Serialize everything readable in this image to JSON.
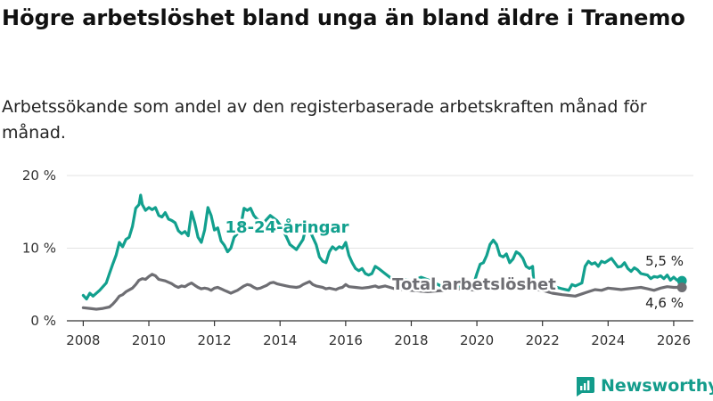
{
  "title": "Högre arbetslöshet bland unga än bland äldre i Tranemo",
  "subtitle": "Arbetssökande som andel av den registerbaserade arbetskraften månad för månad.",
  "logo": {
    "text": "Newsworthy",
    "icon": "bar-chart-logo-icon"
  },
  "colors": {
    "youth": "#12a08e",
    "total": "#6e6e73",
    "grid": "#e3e3e3",
    "axis": "#333333"
  },
  "chart_data": {
    "type": "line",
    "x_ticks": [
      2008,
      2010,
      2012,
      2014,
      2016,
      2018,
      2020,
      2022,
      2024,
      2026
    ],
    "x_tick_labels": [
      "2008",
      "2010",
      "2012",
      "2014",
      "2016",
      "2018",
      "2020",
      "2022",
      "2024",
      "2026"
    ],
    "y_ticks": [
      0,
      10,
      20
    ],
    "y_tick_labels": [
      "0 %",
      "10 %",
      "20 %"
    ],
    "xlim": [
      2007.5,
      2026.6
    ],
    "ylim": [
      0,
      20
    ],
    "series": [
      {
        "name": "18-24-åringar",
        "color": "#12a08e",
        "last_label": "5,5 %",
        "points": [
          [
            2008.0,
            3.5
          ],
          [
            2008.1,
            3.0
          ],
          [
            2008.2,
            3.8
          ],
          [
            2008.3,
            3.4
          ],
          [
            2008.5,
            4.2
          ],
          [
            2008.7,
            5.2
          ],
          [
            2008.8,
            6.5
          ],
          [
            2008.9,
            7.8
          ],
          [
            2009.0,
            9.0
          ],
          [
            2009.1,
            10.8
          ],
          [
            2009.2,
            10.2
          ],
          [
            2009.3,
            11.2
          ],
          [
            2009.4,
            11.5
          ],
          [
            2009.5,
            13.0
          ],
          [
            2009.6,
            15.5
          ],
          [
            2009.7,
            16.0
          ],
          [
            2009.75,
            17.3
          ],
          [
            2009.8,
            16.0
          ],
          [
            2009.9,
            15.2
          ],
          [
            2010.0,
            15.6
          ],
          [
            2010.1,
            15.3
          ],
          [
            2010.2,
            15.6
          ],
          [
            2010.3,
            14.5
          ],
          [
            2010.4,
            14.3
          ],
          [
            2010.5,
            14.9
          ],
          [
            2010.6,
            14.0
          ],
          [
            2010.7,
            13.8
          ],
          [
            2010.8,
            13.5
          ],
          [
            2010.9,
            12.4
          ],
          [
            2011.0,
            12.0
          ],
          [
            2011.1,
            12.3
          ],
          [
            2011.2,
            11.7
          ],
          [
            2011.3,
            15.0
          ],
          [
            2011.4,
            13.5
          ],
          [
            2011.5,
            11.5
          ],
          [
            2011.6,
            10.8
          ],
          [
            2011.7,
            12.5
          ],
          [
            2011.8,
            15.6
          ],
          [
            2011.9,
            14.5
          ],
          [
            2012.0,
            12.5
          ],
          [
            2012.1,
            12.8
          ],
          [
            2012.2,
            11.0
          ],
          [
            2012.3,
            10.4
          ],
          [
            2012.4,
            9.5
          ],
          [
            2012.5,
            10.0
          ],
          [
            2012.6,
            11.5
          ],
          [
            2012.7,
            12.0
          ],
          [
            2012.8,
            13.0
          ],
          [
            2012.9,
            15.5
          ],
          [
            2013.0,
            15.2
          ],
          [
            2013.1,
            15.5
          ],
          [
            2013.2,
            14.5
          ],
          [
            2013.3,
            14.0
          ],
          [
            2013.5,
            13.5
          ],
          [
            2013.7,
            14.5
          ],
          [
            2013.9,
            13.8
          ],
          [
            2014.0,
            13.2
          ],
          [
            2014.2,
            11.5
          ],
          [
            2014.3,
            10.5
          ],
          [
            2014.5,
            9.8
          ],
          [
            2014.7,
            11.2
          ],
          [
            2014.8,
            13.0
          ],
          [
            2014.9,
            12.5
          ],
          [
            2015.0,
            11.5
          ],
          [
            2015.1,
            10.5
          ],
          [
            2015.2,
            8.8
          ],
          [
            2015.3,
            8.2
          ],
          [
            2015.4,
            8.0
          ],
          [
            2015.5,
            9.5
          ],
          [
            2015.6,
            10.2
          ],
          [
            2015.7,
            9.8
          ],
          [
            2015.8,
            10.2
          ],
          [
            2015.9,
            10.0
          ],
          [
            2016.0,
            10.8
          ],
          [
            2016.1,
            9.0
          ],
          [
            2016.2,
            8.0
          ],
          [
            2016.3,
            7.2
          ],
          [
            2016.4,
            6.9
          ],
          [
            2016.5,
            7.2
          ],
          [
            2016.6,
            6.5
          ],
          [
            2016.7,
            6.3
          ],
          [
            2016.8,
            6.5
          ],
          [
            2016.9,
            7.5
          ],
          [
            2017.0,
            7.2
          ],
          [
            2017.2,
            6.5
          ],
          [
            2017.4,
            5.8
          ],
          [
            2017.5,
            5.6
          ],
          [
            2017.7,
            5.8
          ],
          [
            2017.9,
            5.6
          ],
          [
            2018.0,
            5.4
          ],
          [
            2018.3,
            6.0
          ],
          [
            2018.6,
            5.5
          ],
          [
            2018.9,
            4.8
          ],
          [
            2019.2,
            5.0
          ],
          [
            2019.5,
            4.6
          ],
          [
            2019.7,
            4.2
          ],
          [
            2019.9,
            5.0
          ],
          [
            2020.0,
            6.5
          ],
          [
            2020.1,
            7.8
          ],
          [
            2020.2,
            8.0
          ],
          [
            2020.3,
            9.0
          ],
          [
            2020.4,
            10.5
          ],
          [
            2020.5,
            11.1
          ],
          [
            2020.6,
            10.5
          ],
          [
            2020.7,
            9.0
          ],
          [
            2020.8,
            8.8
          ],
          [
            2020.9,
            9.2
          ],
          [
            2021.0,
            8.0
          ],
          [
            2021.1,
            8.5
          ],
          [
            2021.2,
            9.5
          ],
          [
            2021.3,
            9.2
          ],
          [
            2021.4,
            8.6
          ],
          [
            2021.5,
            7.5
          ],
          [
            2021.6,
            7.2
          ],
          [
            2021.7,
            7.5
          ],
          [
            2021.75,
            4.4
          ],
          [
            2022.0,
            4.5
          ],
          [
            2022.3,
            4.8
          ],
          [
            2022.6,
            4.4
          ],
          [
            2022.8,
            4.2
          ],
          [
            2022.9,
            5.0
          ],
          [
            2023.0,
            4.8
          ],
          [
            2023.2,
            5.2
          ],
          [
            2023.3,
            7.5
          ],
          [
            2023.4,
            8.2
          ],
          [
            2023.5,
            7.8
          ],
          [
            2023.6,
            8.0
          ],
          [
            2023.7,
            7.5
          ],
          [
            2023.8,
            8.2
          ],
          [
            2023.9,
            8.0
          ],
          [
            2024.0,
            8.3
          ],
          [
            2024.1,
            8.6
          ],
          [
            2024.2,
            8.0
          ],
          [
            2024.3,
            7.4
          ],
          [
            2024.4,
            7.5
          ],
          [
            2024.5,
            8.0
          ],
          [
            2024.6,
            7.2
          ],
          [
            2024.7,
            6.8
          ],
          [
            2024.8,
            7.3
          ],
          [
            2024.9,
            7.0
          ],
          [
            2025.0,
            6.5
          ],
          [
            2025.2,
            6.3
          ],
          [
            2025.3,
            5.8
          ],
          [
            2025.4,
            6.1
          ],
          [
            2025.5,
            6.0
          ],
          [
            2025.6,
            6.2
          ],
          [
            2025.7,
            5.8
          ],
          [
            2025.8,
            6.3
          ],
          [
            2025.9,
            5.6
          ],
          [
            2026.0,
            6.0
          ],
          [
            2026.1,
            5.6
          ],
          [
            2026.25,
            5.5
          ]
        ]
      },
      {
        "name": "Total arbetslöshet",
        "color": "#6e6e73",
        "last_label": "4,6 %",
        "points": [
          [
            2008.0,
            1.8
          ],
          [
            2008.2,
            1.7
          ],
          [
            2008.4,
            1.6
          ],
          [
            2008.6,
            1.7
          ],
          [
            2008.8,
            1.9
          ],
          [
            2008.9,
            2.3
          ],
          [
            2009.0,
            2.8
          ],
          [
            2009.1,
            3.4
          ],
          [
            2009.2,
            3.6
          ],
          [
            2009.3,
            4.0
          ],
          [
            2009.5,
            4.5
          ],
          [
            2009.6,
            5.0
          ],
          [
            2009.7,
            5.6
          ],
          [
            2009.8,
            5.8
          ],
          [
            2009.9,
            5.7
          ],
          [
            2010.0,
            6.1
          ],
          [
            2010.1,
            6.4
          ],
          [
            2010.2,
            6.2
          ],
          [
            2010.3,
            5.7
          ],
          [
            2010.5,
            5.5
          ],
          [
            2010.6,
            5.3
          ],
          [
            2010.7,
            5.1
          ],
          [
            2010.8,
            4.8
          ],
          [
            2010.9,
            4.6
          ],
          [
            2011.0,
            4.8
          ],
          [
            2011.1,
            4.7
          ],
          [
            2011.2,
            5.0
          ],
          [
            2011.3,
            5.2
          ],
          [
            2011.4,
            4.9
          ],
          [
            2011.5,
            4.6
          ],
          [
            2011.6,
            4.4
          ],
          [
            2011.7,
            4.5
          ],
          [
            2011.8,
            4.4
          ],
          [
            2011.9,
            4.2
          ],
          [
            2012.0,
            4.5
          ],
          [
            2012.1,
            4.6
          ],
          [
            2012.2,
            4.4
          ],
          [
            2012.3,
            4.2
          ],
          [
            2012.4,
            4.0
          ],
          [
            2012.5,
            3.8
          ],
          [
            2012.6,
            4.0
          ],
          [
            2012.7,
            4.2
          ],
          [
            2012.8,
            4.5
          ],
          [
            2012.9,
            4.8
          ],
          [
            2013.0,
            5.0
          ],
          [
            2013.1,
            4.9
          ],
          [
            2013.2,
            4.6
          ],
          [
            2013.3,
            4.4
          ],
          [
            2013.4,
            4.5
          ],
          [
            2013.5,
            4.7
          ],
          [
            2013.6,
            4.9
          ],
          [
            2013.7,
            5.2
          ],
          [
            2013.8,
            5.3
          ],
          [
            2013.9,
            5.1
          ],
          [
            2014.0,
            5.0
          ],
          [
            2014.2,
            4.8
          ],
          [
            2014.3,
            4.7
          ],
          [
            2014.5,
            4.6
          ],
          [
            2014.6,
            4.7
          ],
          [
            2014.7,
            5.0
          ],
          [
            2014.8,
            5.2
          ],
          [
            2014.9,
            5.4
          ],
          [
            2015.0,
            5.0
          ],
          [
            2015.1,
            4.8
          ],
          [
            2015.3,
            4.6
          ],
          [
            2015.4,
            4.4
          ],
          [
            2015.5,
            4.5
          ],
          [
            2015.7,
            4.3
          ],
          [
            2015.8,
            4.5
          ],
          [
            2015.9,
            4.6
          ],
          [
            2016.0,
            5.0
          ],
          [
            2016.1,
            4.7
          ],
          [
            2016.3,
            4.6
          ],
          [
            2016.5,
            4.5
          ],
          [
            2016.7,
            4.6
          ],
          [
            2016.9,
            4.8
          ],
          [
            2017.0,
            4.6
          ],
          [
            2017.2,
            4.8
          ],
          [
            2017.5,
            4.4
          ],
          [
            2017.8,
            4.3
          ],
          [
            2018.0,
            4.2
          ],
          [
            2018.5,
            4.0
          ],
          [
            2019.0,
            4.2
          ],
          [
            2019.5,
            4.4
          ],
          [
            2020.0,
            4.2
          ],
          [
            2020.3,
            4.8
          ],
          [
            2020.5,
            5.2
          ],
          [
            2020.7,
            5.0
          ],
          [
            2020.9,
            4.8
          ],
          [
            2021.0,
            4.6
          ],
          [
            2021.5,
            4.4
          ],
          [
            2022.0,
            4.2
          ],
          [
            2022.3,
            3.8
          ],
          [
            2022.6,
            3.6
          ],
          [
            2022.8,
            3.5
          ],
          [
            2023.0,
            3.4
          ],
          [
            2023.2,
            3.7
          ],
          [
            2023.4,
            4.0
          ],
          [
            2023.6,
            4.3
          ],
          [
            2023.8,
            4.2
          ],
          [
            2024.0,
            4.5
          ],
          [
            2024.2,
            4.4
          ],
          [
            2024.4,
            4.3
          ],
          [
            2024.6,
            4.4
          ],
          [
            2024.8,
            4.5
          ],
          [
            2025.0,
            4.6
          ],
          [
            2025.2,
            4.4
          ],
          [
            2025.4,
            4.2
          ],
          [
            2025.6,
            4.5
          ],
          [
            2025.8,
            4.7
          ],
          [
            2026.0,
            4.6
          ],
          [
            2026.25,
            4.6
          ]
        ]
      }
    ],
    "annotations": [
      {
        "text": "18-24-åringar",
        "series": "18-24-åringar"
      },
      {
        "text": "Total arbetslöshet",
        "series": "Total arbetslöshet"
      }
    ]
  }
}
